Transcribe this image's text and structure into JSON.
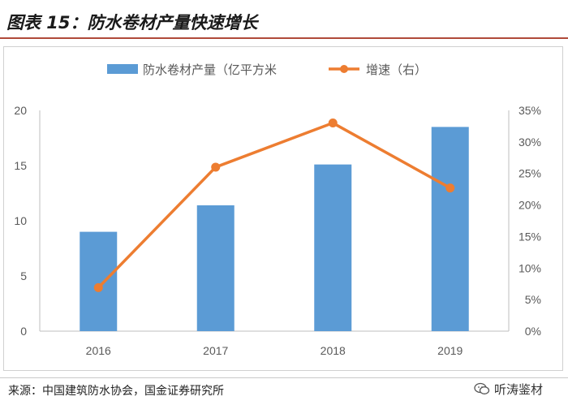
{
  "figure_title": "图表 15：防水卷材产量快速增长",
  "source": "来源：中国建筑防水协会，国金证券研究所",
  "watermark": "听涛鉴材",
  "colors": {
    "bar": "#5b9bd5",
    "line": "#ed7d31",
    "title_rule": "#b04a3a"
  },
  "chart_data": {
    "type": "bar",
    "categories": [
      "2016",
      "2017",
      "2018",
      "2019"
    ],
    "series": [
      {
        "name": "防水卷材产量（亿平方米",
        "type": "bar",
        "axis": "left",
        "values": [
          9.0,
          11.4,
          15.1,
          18.5
        ]
      },
      {
        "name": "增速（右）",
        "type": "line",
        "axis": "right",
        "values": [
          6.9,
          26.0,
          33.0,
          22.7
        ]
      }
    ],
    "y_left": {
      "range": [
        0,
        20
      ],
      "ticks": [
        "0",
        "5",
        "10",
        "15",
        "20"
      ]
    },
    "y_right": {
      "range": [
        0,
        35
      ],
      "ticks": [
        "0%",
        "5%",
        "10%",
        "15%",
        "20%",
        "25%",
        "30%",
        "35%"
      ]
    },
    "grid": false,
    "legend_position": "top-center"
  }
}
